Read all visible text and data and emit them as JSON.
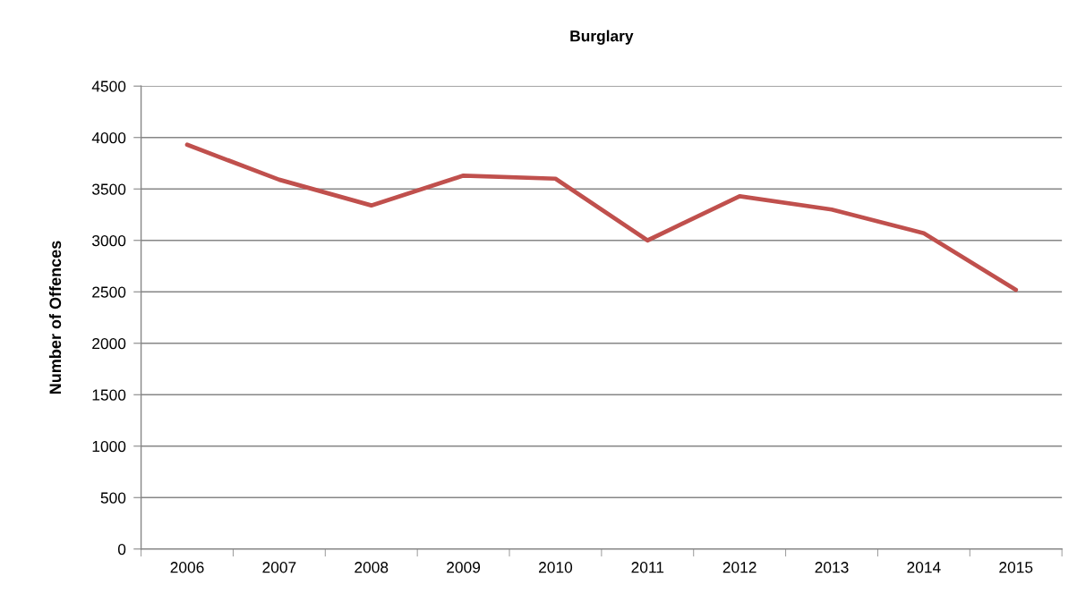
{
  "chart_data": {
    "type": "line",
    "title": "Burglary",
    "ylabel": "Number of Offences",
    "categories": [
      "2006",
      "2007",
      "2008",
      "2009",
      "2010",
      "2011",
      "2012",
      "2013",
      "2014",
      "2015"
    ],
    "series": [
      {
        "color": "#c0504d",
        "values": [
          3930,
          3590,
          3340,
          3630,
          3600,
          3000,
          3430,
          3300,
          3070,
          2520
        ]
      }
    ],
    "ylim": [
      0,
      4500
    ],
    "yticks": [
      0,
      500,
      1000,
      1500,
      2000,
      2500,
      3000,
      3500,
      4000,
      4500
    ],
    "grid": "y",
    "marker": "none",
    "line_style": "solid"
  }
}
